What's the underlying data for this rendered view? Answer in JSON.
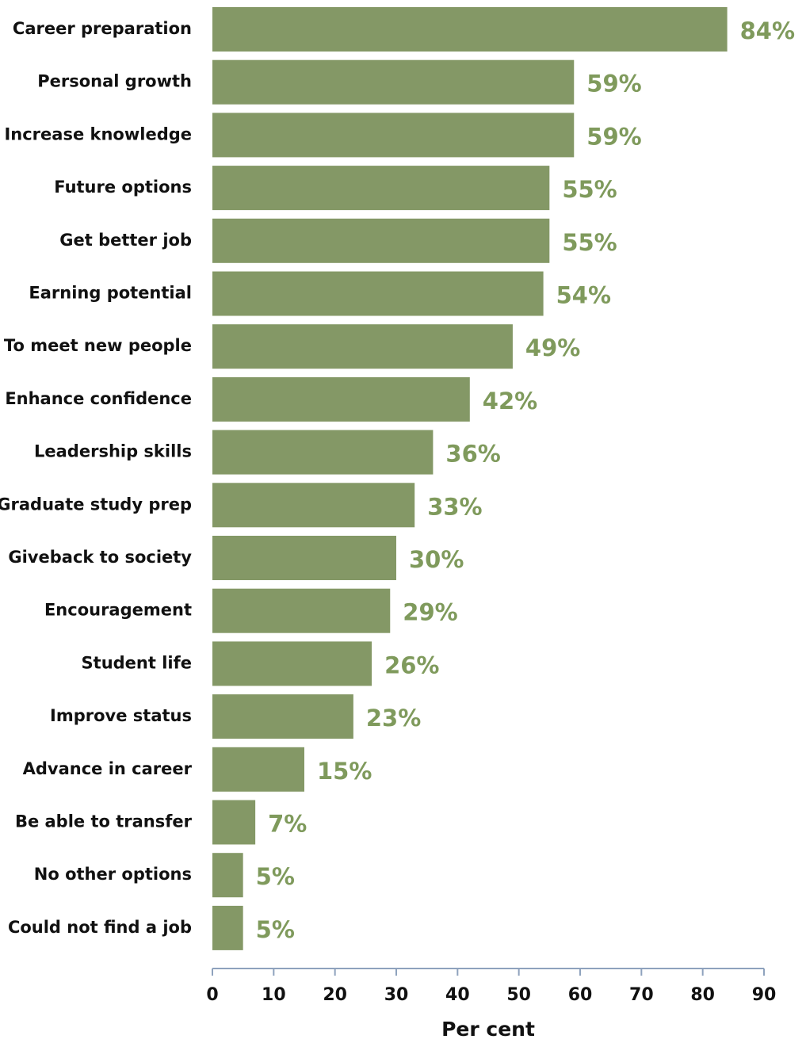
{
  "chart_data": {
    "type": "barh",
    "categories": [
      "Career preparation",
      "Personal growth",
      "Increase knowledge",
      "Future options",
      "Get better job",
      "Earning potential",
      "To meet new people",
      "Enhance confidence",
      "Leadership skills",
      "Graduate study prep",
      "Giveback to society",
      "Encouragement",
      "Student life",
      "Improve status",
      "Advance in career",
      "Be able to transfer",
      "No other options",
      "Could not find a job"
    ],
    "values": [
      84,
      59,
      59,
      55,
      55,
      54,
      49,
      42,
      36,
      33,
      30,
      29,
      26,
      23,
      15,
      7,
      5,
      5
    ],
    "value_labels": [
      "84%",
      "59%",
      "59%",
      "55%",
      "55%",
      "54%",
      "49%",
      "42%",
      "36%",
      "33%",
      "30%",
      "29%",
      "26%",
      "23%",
      "15%",
      "7%",
      "5%",
      "5%"
    ],
    "color": "#849866",
    "label_color": "#7f9a5c",
    "xlabel": "Per cent",
    "xlim": [
      0,
      90
    ],
    "xticks": [
      0,
      10,
      20,
      30,
      40,
      50,
      60,
      70,
      80,
      90
    ]
  }
}
